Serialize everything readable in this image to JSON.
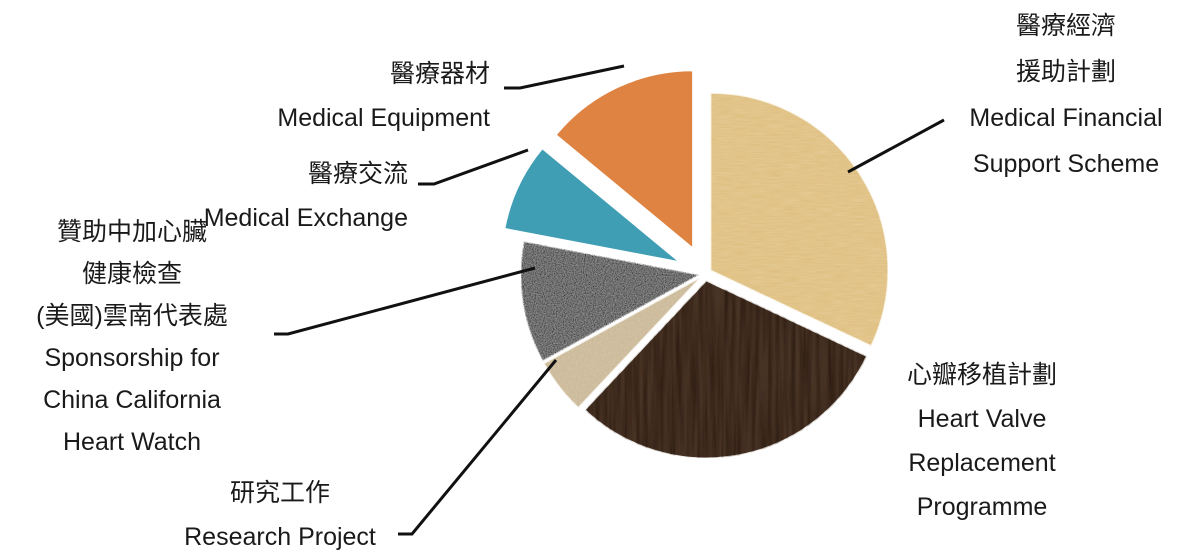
{
  "chart_data": {
    "type": "pie",
    "title": "",
    "legend": "none",
    "slices": [
      {
        "label_lines": [
          "醫療經濟",
          "援助計劃",
          "Medical Financial",
          "Support Scheme"
        ],
        "value": 32,
        "color": "#e7cf9c",
        "texture": "parchment",
        "exploded": false
      },
      {
        "label_lines": [
          "心瓣移植計劃",
          "Heart Valve",
          "Replacement",
          "Programme"
        ],
        "value": 30,
        "color": "#4a3526",
        "texture": "dark-wood",
        "exploded": false
      },
      {
        "label_lines": [
          "研究工作",
          "Research Project"
        ],
        "value": 5,
        "color": "#d9ccb2",
        "texture": "canvas",
        "exploded": false
      },
      {
        "label_lines": [
          "贊助中加心臟",
          "健康檢查",
          "(美國)雲南代表處",
          "Sponsorship for",
          "China California",
          "Heart Watch"
        ],
        "value": 11,
        "color": "#9b9b9b",
        "texture": "granite",
        "exploded": false
      },
      {
        "label_lines": [
          "醫療交流",
          "Medical Exchange"
        ],
        "value": 8,
        "color": "#3f9db4",
        "texture": "solid",
        "exploded": true
      },
      {
        "label_lines": [
          "醫療器材",
          "Medical Equipment"
        ],
        "value": 14,
        "color": "#df8342",
        "texture": "solid",
        "exploded": true
      }
    ]
  }
}
